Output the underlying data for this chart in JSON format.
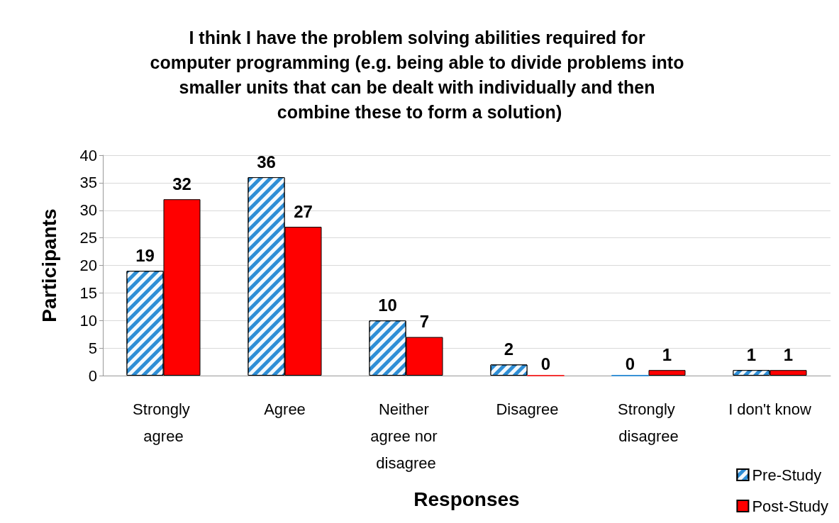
{
  "chart_data": {
    "type": "bar",
    "title": "I think I have the problem solving abilities required for computer programming (e.g. being able to divide problems into smaller units that can be dealt with individually and then combine these to form a solution)",
    "xlabel": "Responses",
    "ylabel": "Participants",
    "categories": [
      "Strongly agree",
      "Agree",
      "Neither agree nor disagree",
      "Disagree",
      "Strongly disagree",
      "I don't know"
    ],
    "series": [
      {
        "name": "Pre-Study",
        "color": "#2e8ed6",
        "values": [
          19,
          36,
          10,
          2,
          0,
          1
        ]
      },
      {
        "name": "Post-Study",
        "color": "#ff0000",
        "values": [
          32,
          27,
          7,
          0,
          1,
          1
        ]
      }
    ],
    "ylim": [
      0,
      40
    ],
    "yticks": [
      0,
      5,
      10,
      15,
      20,
      25,
      30,
      35,
      40
    ],
    "grid": "y",
    "legend": "bottom right",
    "data_labels": true
  }
}
